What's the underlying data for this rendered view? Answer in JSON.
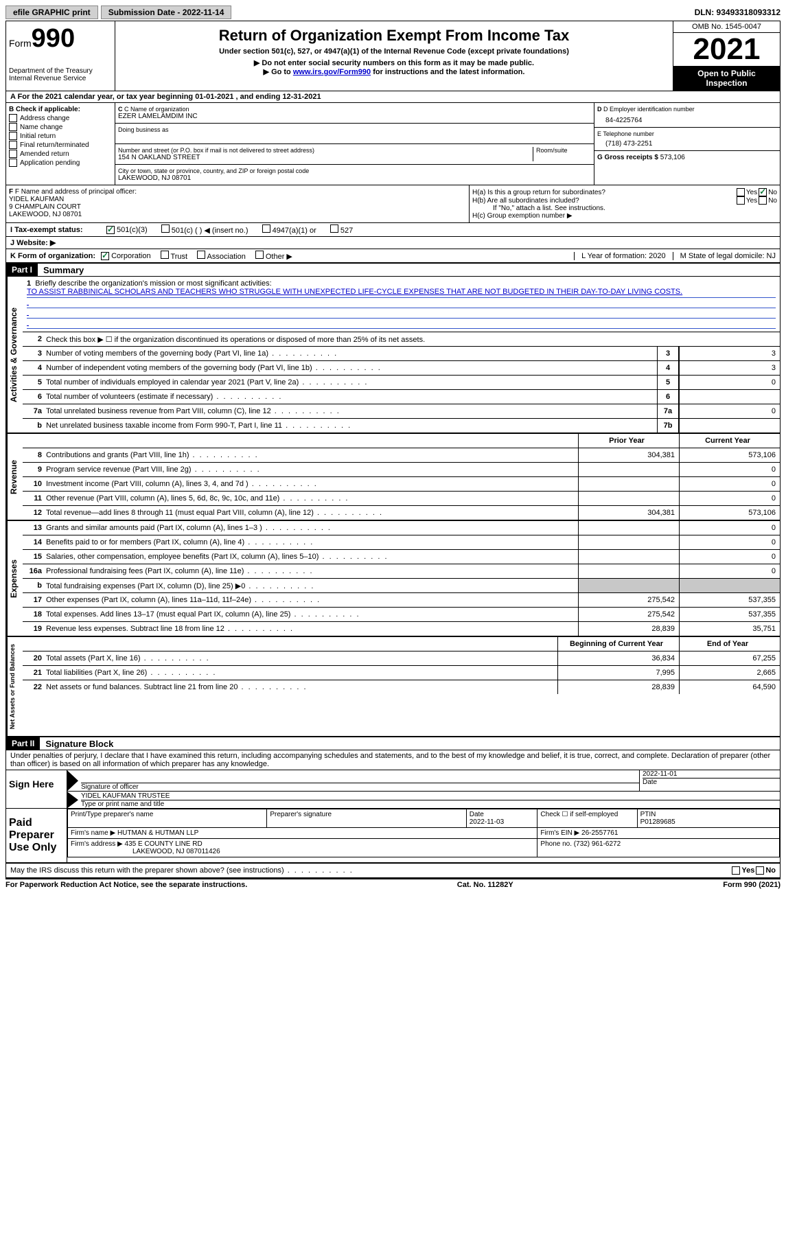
{
  "topbar": {
    "efile": "efile GRAPHIC print",
    "submission_label": "Submission Date - 2022-11-14",
    "dln": "DLN: 93493318093312"
  },
  "header": {
    "form_word": "Form",
    "form_number": "990",
    "title": "Return of Organization Exempt From Income Tax",
    "subtitle": "Under section 501(c), 527, or 4947(a)(1) of the Internal Revenue Code (except private foundations)",
    "instr1": "▶ Do not enter social security numbers on this form as it may be made public.",
    "instr2_pre": "▶ Go to ",
    "instr2_link": "www.irs.gov/Form990",
    "instr2_post": " for instructions and the latest information.",
    "dept": "Department of the Treasury",
    "irs": "Internal Revenue Service",
    "omb": "OMB No. 1545-0047",
    "year": "2021",
    "open": "Open to Public Inspection"
  },
  "row_a": "A For the 2021 calendar year, or tax year beginning 01-01-2021   , and ending 12-31-2021",
  "col_b": {
    "label": "B Check if applicable:",
    "items": [
      "Address change",
      "Name change",
      "Initial return",
      "Final return/terminated",
      "Amended return",
      "Application pending"
    ]
  },
  "col_c": {
    "name_label": "C Name of organization",
    "name": "EZER LAMELAMDIM INC",
    "dba_label": "Doing business as",
    "street_label": "Number and street (or P.O. box if mail is not delivered to street address)",
    "room_label": "Room/suite",
    "street": "154 N OAKLAND STREET",
    "city_label": "City or town, state or province, country, and ZIP or foreign postal code",
    "city": "LAKEWOOD, NJ  08701"
  },
  "col_d": {
    "ein_label": "D Employer identification number",
    "ein": "84-4225764",
    "phone_label": "E Telephone number",
    "phone": "(718) 473-2251",
    "gross_label": "G Gross receipts $",
    "gross": "573,106"
  },
  "col_f": {
    "label": "F Name and address of principal officer:",
    "name": "YIDEL KAUFMAN",
    "street": "9 CHAMPLAIN COURT",
    "city": "LAKEWOOD, NJ  08701"
  },
  "col_h": {
    "ha": "H(a)  Is this a group return for subordinates?",
    "hb": "H(b)  Are all subordinates included?",
    "hb_note": "If \"No,\" attach a list. See instructions.",
    "hc": "H(c)  Group exemption number ▶",
    "yes": "Yes",
    "no": "No"
  },
  "row_i": {
    "label": "I   Tax-exempt status:",
    "opts": [
      "501(c)(3)",
      "501(c) (  ) ◀ (insert no.)",
      "4947(a)(1) or",
      "527"
    ]
  },
  "row_j": "J   Website: ▶",
  "row_k": {
    "label": "K Form of organization:",
    "opts": [
      "Corporation",
      "Trust",
      "Association",
      "Other ▶"
    ],
    "l": "L Year of formation: 2020",
    "m": "M State of legal domicile: NJ"
  },
  "part1": {
    "tag": "Part I",
    "title": "Summary",
    "line1_label": "Briefly describe the organization's mission or most significant activities:",
    "mission": "TO ASSIST RABBINICAL SCHOLARS AND TEACHERS WHO STRUGGLE WITH UNEXPECTED LIFE-CYCLE EXPENSES THAT ARE NOT BUDGETED IN THEIR DAY-TO-DAY LIVING COSTS.",
    "line2": "Check this box ▶ ☐  if the organization discontinued its operations or disposed of more than 25% of its net assets.",
    "vert_ag": "Activities & Governance",
    "vert_rev": "Revenue",
    "vert_exp": "Expenses",
    "vert_na": "Net Assets or Fund Balances",
    "prior": "Prior Year",
    "current": "Current Year",
    "beg": "Beginning of Current Year",
    "end": "End of Year",
    "rows_ag": [
      {
        "n": "3",
        "t": "Number of voting members of the governing body (Part VI, line 1a)",
        "box": "3",
        "v": "3"
      },
      {
        "n": "4",
        "t": "Number of independent voting members of the governing body (Part VI, line 1b)",
        "box": "4",
        "v": "3"
      },
      {
        "n": "5",
        "t": "Total number of individuals employed in calendar year 2021 (Part V, line 2a)",
        "box": "5",
        "v": "0"
      },
      {
        "n": "6",
        "t": "Total number of volunteers (estimate if necessary)",
        "box": "6",
        "v": ""
      },
      {
        "n": "7a",
        "t": "Total unrelated business revenue from Part VIII, column (C), line 12",
        "box": "7a",
        "v": "0"
      },
      {
        "n": "b",
        "t": "Net unrelated business taxable income from Form 990-T, Part I, line 11",
        "box": "7b",
        "v": ""
      }
    ],
    "rows_rev": [
      {
        "n": "8",
        "t": "Contributions and grants (Part VIII, line 1h)",
        "p": "304,381",
        "c": "573,106"
      },
      {
        "n": "9",
        "t": "Program service revenue (Part VIII, line 2g)",
        "p": "",
        "c": "0"
      },
      {
        "n": "10",
        "t": "Investment income (Part VIII, column (A), lines 3, 4, and 7d )",
        "p": "",
        "c": "0"
      },
      {
        "n": "11",
        "t": "Other revenue (Part VIII, column (A), lines 5, 6d, 8c, 9c, 10c, and 11e)",
        "p": "",
        "c": "0"
      },
      {
        "n": "12",
        "t": "Total revenue—add lines 8 through 11 (must equal Part VIII, column (A), line 12)",
        "p": "304,381",
        "c": "573,106"
      }
    ],
    "rows_exp": [
      {
        "n": "13",
        "t": "Grants and similar amounts paid (Part IX, column (A), lines 1–3 )",
        "p": "",
        "c": "0"
      },
      {
        "n": "14",
        "t": "Benefits paid to or for members (Part IX, column (A), line 4)",
        "p": "",
        "c": "0"
      },
      {
        "n": "15",
        "t": "Salaries, other compensation, employee benefits (Part IX, column (A), lines 5–10)",
        "p": "",
        "c": "0"
      },
      {
        "n": "16a",
        "t": "Professional fundraising fees (Part IX, column (A), line 11e)",
        "p": "",
        "c": "0"
      },
      {
        "n": "b",
        "t": "Total fundraising expenses (Part IX, column (D), line 25) ▶0",
        "p": "gray",
        "c": "gray"
      },
      {
        "n": "17",
        "t": "Other expenses (Part IX, column (A), lines 11a–11d, 11f–24e)",
        "p": "275,542",
        "c": "537,355"
      },
      {
        "n": "18",
        "t": "Total expenses. Add lines 13–17 (must equal Part IX, column (A), line 25)",
        "p": "275,542",
        "c": "537,355"
      },
      {
        "n": "19",
        "t": "Revenue less expenses. Subtract line 18 from line 12",
        "p": "28,839",
        "c": "35,751"
      }
    ],
    "rows_na": [
      {
        "n": "20",
        "t": "Total assets (Part X, line 16)",
        "p": "36,834",
        "c": "67,255"
      },
      {
        "n": "21",
        "t": "Total liabilities (Part X, line 26)",
        "p": "7,995",
        "c": "2,665"
      },
      {
        "n": "22",
        "t": "Net assets or fund balances. Subtract line 21 from line 20",
        "p": "28,839",
        "c": "64,590"
      }
    ]
  },
  "part2": {
    "tag": "Part II",
    "title": "Signature Block",
    "penalty": "Under penalties of perjury, I declare that I have examined this return, including accompanying schedules and statements, and to the best of my knowledge and belief, it is true, correct, and complete. Declaration of preparer (other than officer) is based on all information of which preparer has any knowledge.",
    "sign_here": "Sign Here",
    "sig_officer": "Signature of officer",
    "sig_date": "2022-11-01",
    "date_label": "Date",
    "officer_name": "YIDEL KAUFMAN  TRUSTEE",
    "type_label": "Type or print name and title",
    "paid": "Paid Preparer Use Only",
    "prep_name_label": "Print/Type preparer's name",
    "prep_sig_label": "Preparer's signature",
    "prep_date_label": "Date",
    "prep_date": "2022-11-03",
    "check_self": "Check ☐ if self-employed",
    "ptin_label": "PTIN",
    "ptin": "P01289685",
    "firm_name_label": "Firm's name   ▶",
    "firm_name": "HUTMAN & HUTMAN LLP",
    "firm_ein_label": "Firm's EIN ▶",
    "firm_ein": "26-2557761",
    "firm_addr_label": "Firm's address ▶",
    "firm_addr": "435 E COUNTY LINE RD",
    "firm_city": "LAKEWOOD, NJ  087011426",
    "firm_phone_label": "Phone no.",
    "firm_phone": "(732) 961-6272",
    "discuss": "May the IRS discuss this return with the preparer shown above? (see instructions)"
  },
  "footer": {
    "left": "For Paperwork Reduction Act Notice, see the separate instructions.",
    "center": "Cat. No. 11282Y",
    "right": "Form 990 (2021)"
  }
}
